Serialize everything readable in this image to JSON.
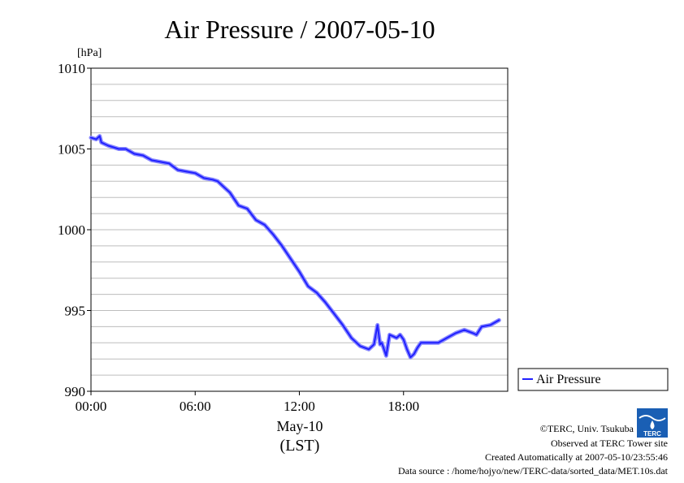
{
  "chart_data": {
    "type": "line",
    "title": "Air Pressure / 2007-05-10",
    "ylabel": "[hPa]",
    "xlabel": "May-10",
    "xlabel_unit": "(LST)",
    "ylim": [
      990,
      1010
    ],
    "xlim": [
      0,
      23.5
    ],
    "yticks": [
      "990",
      "995",
      "1000",
      "1005",
      "1010"
    ],
    "xticks": [
      "00:00",
      "06:00",
      "12:00",
      "18:00"
    ],
    "grid": true,
    "legend_position": "right",
    "colors": {
      "line": "#2020ff",
      "line_halo": "#8888ff"
    },
    "series": [
      {
        "name": "Air Pressure",
        "x": [
          0.0,
          0.3,
          0.5,
          0.6,
          0.8,
          1.0,
          1.3,
          1.6,
          2.0,
          2.5,
          3.0,
          3.5,
          4.0,
          4.5,
          5.0,
          5.5,
          6.0,
          6.5,
          7.0,
          7.3,
          7.6,
          8.0,
          8.5,
          9.0,
          9.5,
          10.0,
          10.5,
          11.0,
          11.5,
          12.0,
          12.5,
          13.0,
          13.5,
          14.0,
          14.5,
          15.0,
          15.5,
          16.0,
          16.3,
          16.5,
          16.65,
          16.75,
          17.0,
          17.2,
          17.4,
          17.6,
          17.8,
          18.0,
          18.2,
          18.4,
          18.6,
          18.8,
          19.0,
          19.3,
          19.6,
          20.0,
          20.5,
          21.0,
          21.5,
          22.0,
          22.2,
          22.5,
          23.0,
          23.5
        ],
        "y": [
          1005.7,
          1005.6,
          1005.8,
          1005.4,
          1005.3,
          1005.2,
          1005.1,
          1005.0,
          1005.0,
          1004.7,
          1004.6,
          1004.3,
          1004.2,
          1004.1,
          1003.7,
          1003.6,
          1003.5,
          1003.2,
          1003.1,
          1003.0,
          1002.7,
          1002.3,
          1001.5,
          1001.3,
          1000.6,
          1000.3,
          999.7,
          999.0,
          998.2,
          997.4,
          996.5,
          996.1,
          995.5,
          994.8,
          994.1,
          993.3,
          992.8,
          992.6,
          992.9,
          994.1,
          992.9,
          993.0,
          992.2,
          993.5,
          993.4,
          993.3,
          993.5,
          993.2,
          992.6,
          992.1,
          992.3,
          992.7,
          993.0,
          993.0,
          993.0,
          993.0,
          993.3,
          993.6,
          993.8,
          993.6,
          993.5,
          994.0,
          994.1,
          994.4
        ]
      }
    ]
  },
  "footer": {
    "copyright": "©TERC, Univ. Tsukuba",
    "observed": "Observed at TERC Tower site",
    "created": "Created Automatically at 2007-05-10/23:55:46",
    "source": "Data source : /home/hojyo/new/TERC-data/sorted_data/MET.10s.dat",
    "logo_text": "TERC"
  }
}
